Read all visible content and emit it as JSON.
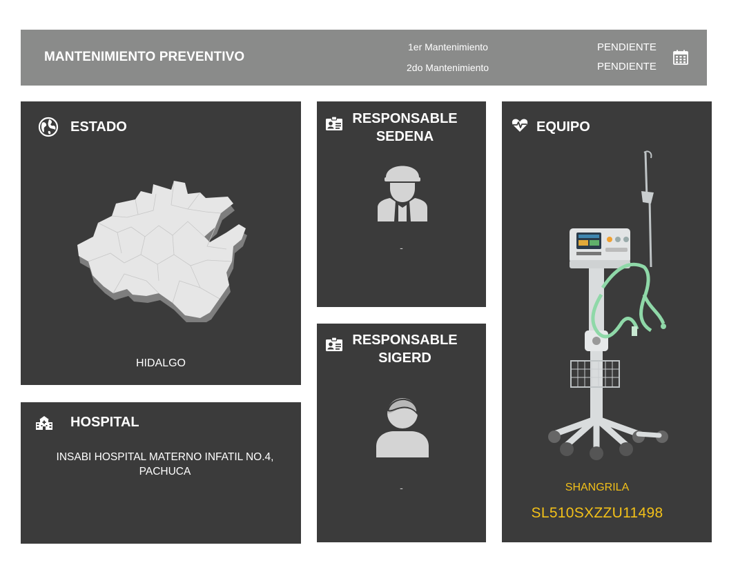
{
  "header": {
    "title": "MANTENIMIENTO PREVENTIVO",
    "maintenance": [
      {
        "label": "1er Mantenimiento",
        "status": "PENDIENTE"
      },
      {
        "label": "2do Mantenimiento",
        "status": "PENDIENTE"
      }
    ],
    "icon": "calendar-icon"
  },
  "estado": {
    "title": "ESTADO",
    "icon": "globe-icon",
    "value": "HIDALGO"
  },
  "hospital": {
    "title": "HOSPITAL",
    "icon": "hospital-icon",
    "value": "INSABI HOSPITAL MATERNO INFATIL NO.4, PACHUCA"
  },
  "sedena": {
    "title_line1": "RESPONSABLE",
    "title_line2": "SEDENA",
    "icon": "id-card-icon",
    "value": "-"
  },
  "sigerd": {
    "title_line1": "RESPONSABLE",
    "title_line2": "SIGERD",
    "icon": "id-card-icon",
    "value": "-"
  },
  "equipo": {
    "title": "EQUIPO",
    "icon": "heartbeat-icon",
    "brand": "SHANGRILA",
    "serial": "SL510SXZZU11498"
  },
  "colors": {
    "header_bg": "#8a8b8a",
    "card_bg": "#3b3b3b",
    "accent": "#f2c019"
  }
}
